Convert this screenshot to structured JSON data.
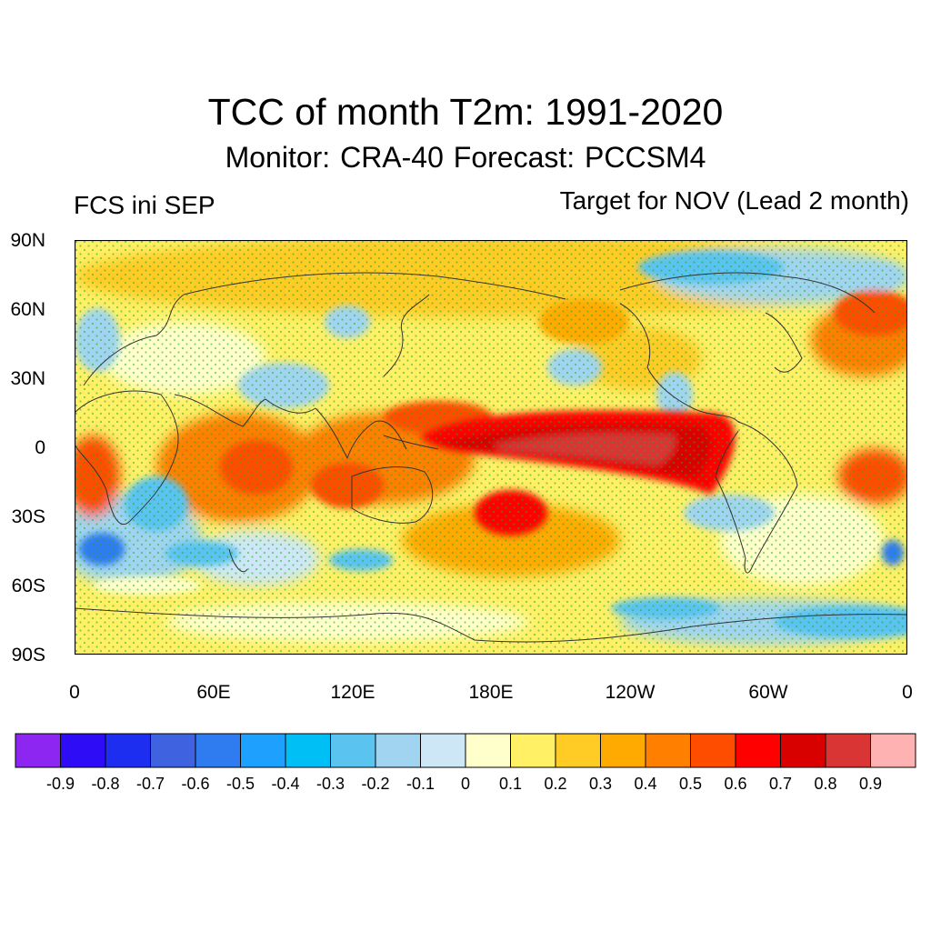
{
  "header": {
    "title": "TCC of month T2m: 1991-2020",
    "subtitle": "Monitor: CRA-40   Forecast: PCCSM4",
    "left_string": "FCS ini SEP",
    "right_string": "Target for NOV (Lead 2 month)"
  },
  "map": {
    "projection": "cylindrical-equidistant",
    "lon_range": [
      0,
      360
    ],
    "lat_range": [
      -90,
      90
    ],
    "lat_labels": [
      "90N",
      "60N",
      "30N",
      "0",
      "30S",
      "60S",
      "90S"
    ],
    "lon_labels": [
      "0",
      "60E",
      "120E",
      "180E",
      "120W",
      "60W",
      "0"
    ],
    "stipple_color": "#22aa22",
    "coastline_color": "#333333"
  },
  "colorbar": {
    "colors": [
      "#8d26f0",
      "#2e0cf5",
      "#1e2ef0",
      "#3f62e0",
      "#2e7cf0",
      "#1ea0ff",
      "#00bff5",
      "#5ac3f0",
      "#a0d4f0",
      "#cde7f7",
      "#ffffcc",
      "#fff066",
      "#ffcc26",
      "#ffaa00",
      "#ff7f00",
      "#ff4d00",
      "#ff0000",
      "#d90000",
      "#d93535",
      "#ffb2b2"
    ],
    "labels": [
      "-0.9",
      "-0.8",
      "-0.7",
      "-0.6",
      "-0.5",
      "-0.4",
      "-0.3",
      "-0.2",
      "-0.1",
      "0",
      "0.1",
      "0.2",
      "0.3",
      "0.4",
      "0.5",
      "0.6",
      "0.7",
      "0.8",
      "0.9"
    ]
  }
}
